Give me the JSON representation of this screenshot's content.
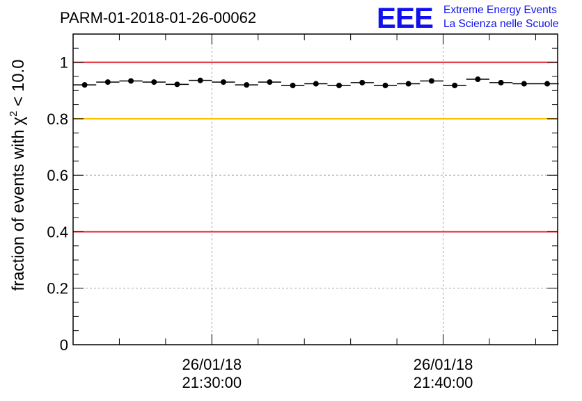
{
  "header": {
    "run_title": "PARM-01-2018-01-26-00062",
    "logo_text": "EEE",
    "logo_line1": "Extreme Energy Events",
    "logo_line2": "La Scienza nelle Scuole",
    "logo_color": "#1010ee"
  },
  "chart_data": {
    "type": "scatter",
    "title": "PARM-01-2018-01-26-00062",
    "ylabel": "fraction of events with",
    "ylabel_symbol": "χ",
    "ylabel_exponent": "2",
    "ylabel_tail": " < 10.0",
    "xlabel": "",
    "ylim": [
      0,
      1.1
    ],
    "y_ticks": [
      0,
      0.2,
      0.4,
      0.6,
      0.8,
      1
    ],
    "y_tick_labels": [
      "0",
      "0.2",
      "0.4",
      "0.6",
      "0.8",
      "1"
    ],
    "x_unit": "minutes after 26/01/18 21:20:00",
    "xlim": [
      -3.05,
      17.9
    ],
    "x_ticks": [
      {
        "x": 2.95,
        "date": "26/01/18",
        "time": "21:30:00"
      },
      {
        "x": 12.95,
        "date": "26/01/18",
        "time": "21:40:00"
      }
    ],
    "grid": true,
    "reference_lines": [
      {
        "y": 1.0,
        "color": "#e0202a"
      },
      {
        "y": 0.8,
        "color": "#ffc000"
      },
      {
        "y": 0.4,
        "color": "#e0202a"
      }
    ],
    "series": [
      {
        "marker_color": "#000000",
        "x_halfwidth": 0.5,
        "x": [
          -2.55,
          -1.55,
          -0.55,
          0.45,
          1.45,
          2.45,
          3.45,
          4.45,
          5.45,
          6.45,
          7.45,
          8.45,
          9.45,
          10.45,
          11.45,
          12.45,
          13.45,
          14.45,
          15.45,
          16.45,
          17.45
        ],
        "y": [
          0.92,
          0.93,
          0.934,
          0.93,
          0.922,
          0.936,
          0.93,
          0.92,
          0.93,
          0.918,
          0.924,
          0.918,
          0.928,
          0.918,
          0.924,
          0.934,
          0.918,
          0.94,
          0.928,
          0.924,
          0.924
        ]
      }
    ]
  }
}
